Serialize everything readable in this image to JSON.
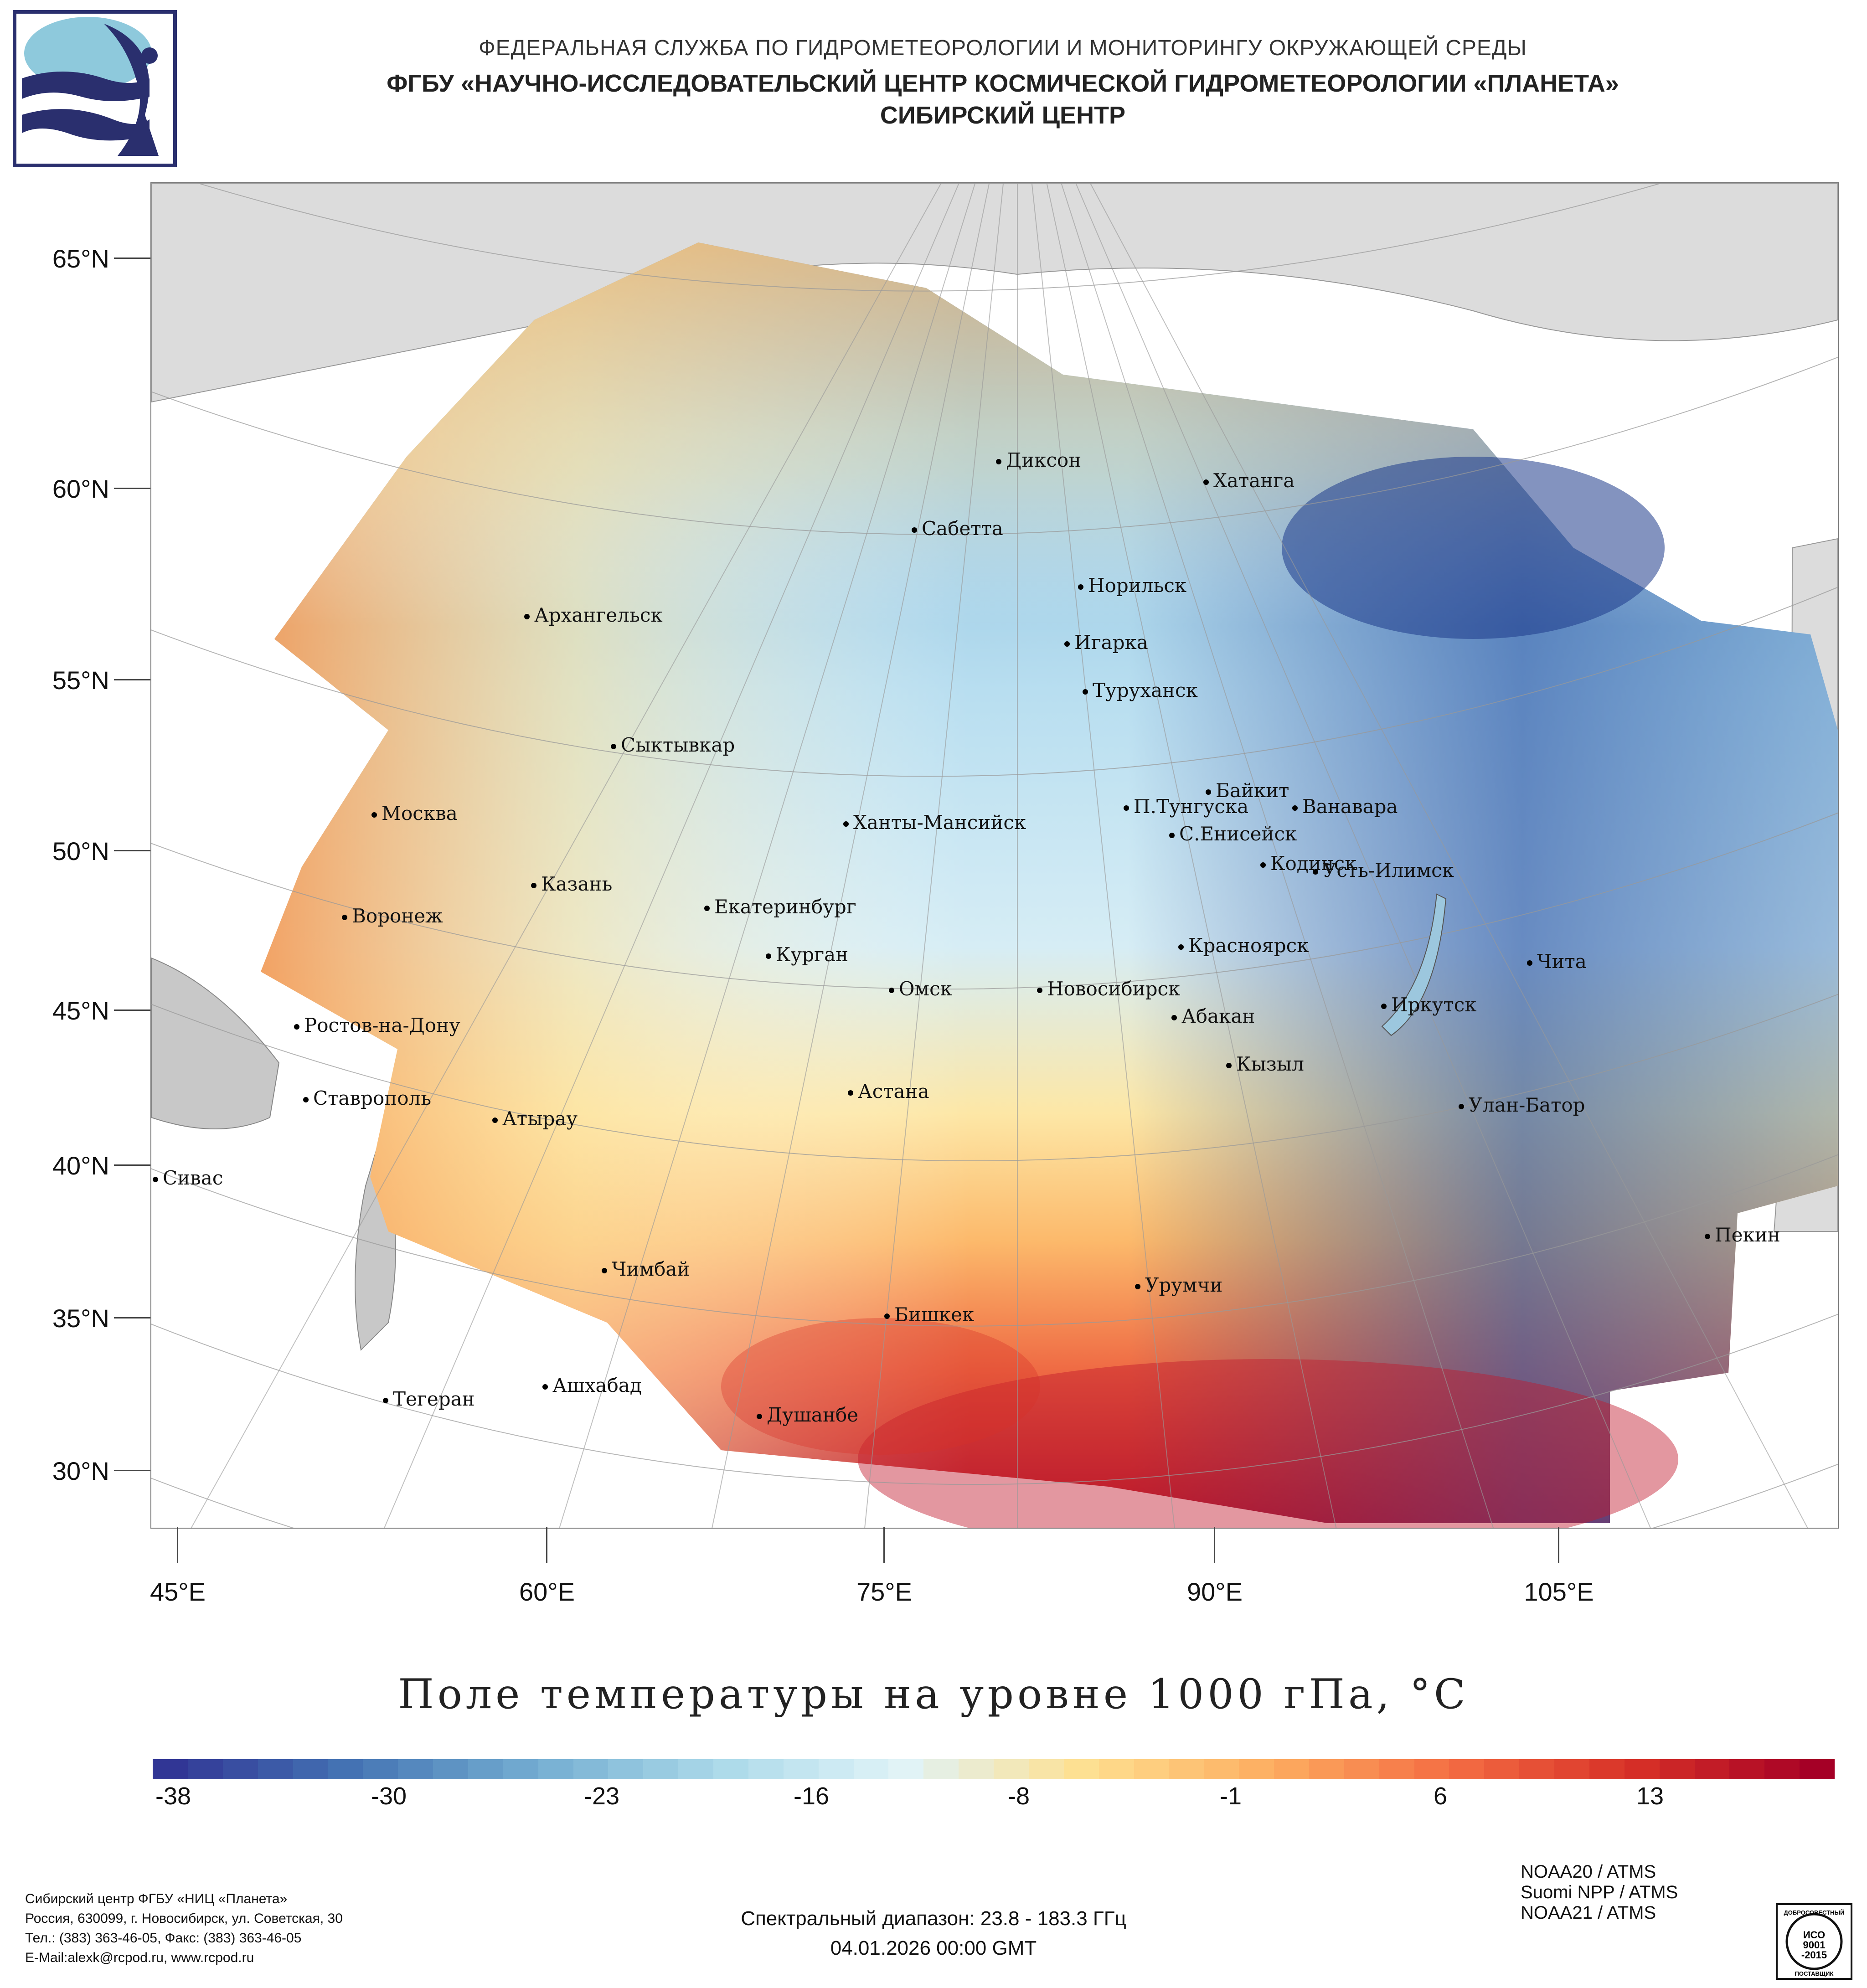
{
  "header": {
    "line1": "ФЕДЕРАЛЬНАЯ СЛУЖБА ПО ГИДРОМЕТЕОРОЛОГИИ И МОНИТОРИНГУ ОКРУЖАЮЩЕЙ СРЕДЫ",
    "line2": "ФГБУ «НАУЧНО-ИССЛЕДОВАТЕЛЬСКИЙ ЦЕНТР КОСМИЧЕСКОЙ ГИДРОМЕТЕОРОЛОГИИ «ПЛАНЕТА»",
    "line3": "СИБИРСКИЙ ЦЕНТР"
  },
  "latitudes": [
    "65°N",
    "60°N",
    "55°N",
    "50°N",
    "45°N",
    "40°N",
    "35°N",
    "30°N"
  ],
  "longitudes": [
    "45°E",
    "60°E",
    "75°E",
    "90°E",
    "105°E"
  ],
  "cities": {
    "dikson": "Диксон",
    "khatanga": "Хатанга",
    "sabetta": "Сабетта",
    "norilsk": "Норильск",
    "arkhangelsk": "Архангельск",
    "igarka": "Игарка",
    "turukhansk": "Туруханск",
    "syktyvkar": "Сыктывкар",
    "baikit": "Байкит",
    "moskva": "Москва",
    "p_tunguska": "П.Тунгуска",
    "vanavara": "Ванавара",
    "khanty": "Ханты-Мансийск",
    "s_eniseysk": "С.Енисейск",
    "kodinsk": "Кодинск",
    "ust_ilimsk": "Усть-Илимск",
    "kazan": "Казань",
    "ekaterinburg": "Екатеринбург",
    "voronezh": "Воронеж",
    "krasnoyarsk": "Красноярск",
    "kurgan": "Курган",
    "chita": "Чита",
    "omsk": "Омск",
    "novosibirsk": "Новосибирск",
    "irkutsk": "Иркутск",
    "rostov": "Ростов-на-Дону",
    "abakan": "Абакан",
    "kyzyl": "Кызыл",
    "astana": "Астана",
    "stavropol": "Ставрополь",
    "ulan_bator": "Улан-Батор",
    "atyrau": "Атырау",
    "sivas": "Сивас",
    "pekin": "Пекин",
    "chimbay": "Чимбай",
    "urumchi": "Урумчи",
    "bishkek": "Бишкек",
    "ashkhabad": "Ашхабад",
    "tegeran": "Тегеран",
    "dushanbe": "Душанбе"
  },
  "map_title": "Поле температуры на уровне 1000 гПа, °C",
  "colorbar": {
    "labels": [
      "-38",
      "-30",
      "-23",
      "-16",
      "-8",
      "-1",
      "6",
      "13"
    ],
    "colors": [
      "#313695",
      "#4575b4",
      "#74add1",
      "#abd9e9",
      "#e0f3f8",
      "#fee090",
      "#fdae61",
      "#f46d43",
      "#d73027",
      "#a50026"
    ]
  },
  "footer": {
    "org": "Сибирский центр ФГБУ «НИЦ «Планета»",
    "address": "Россия, 630099, г. Новосибирск, ул. Советская, 30",
    "phone": "Тел.: (383) 363-46-05, Факс: (383) 363-46-05",
    "email": "E-Mail:alexk@rcpod.ru, www.rcpod.ru",
    "sensors": [
      "NOAA20 / ATMS",
      "Suomi NPP / ATMS",
      "NOAA21 / ATMS"
    ],
    "spectral": "Спектральный диапазон: 23.8 - 183.3 ГГц",
    "datetime": "04.01.2026 00:00 GMT",
    "iso_top": "ДОБРОСОВЕСТНЫЙ",
    "iso_mid1": "ИСО",
    "iso_mid2": "9001",
    "iso_mid3": "-2015",
    "iso_bottom": "ПОСТАВЩИК"
  }
}
